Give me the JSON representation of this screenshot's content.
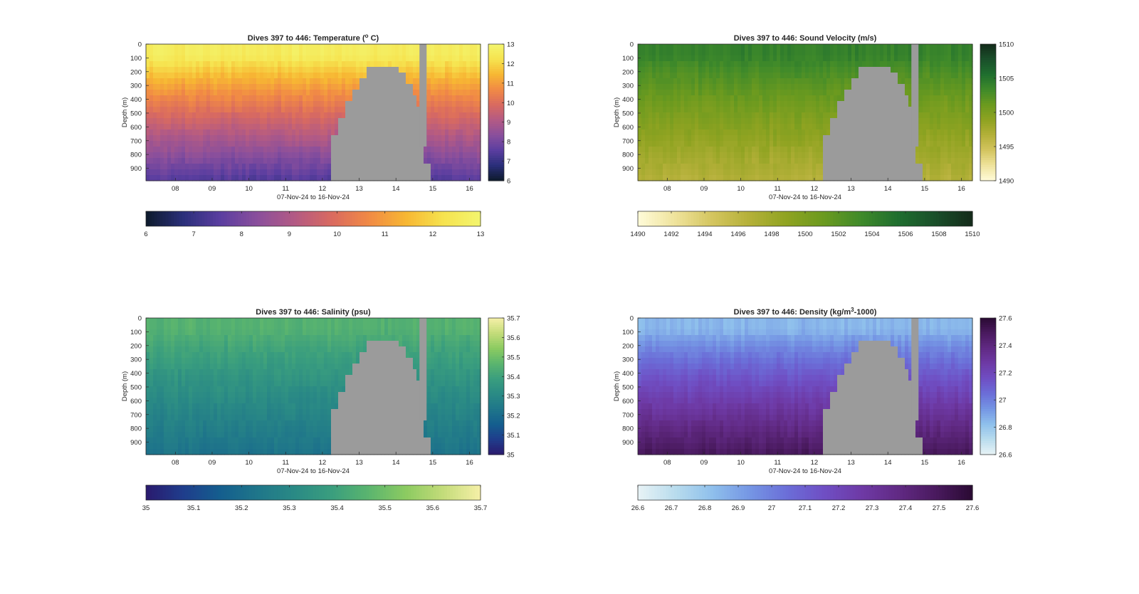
{
  "figure": {
    "depth_label": "Depth (m)",
    "date_label": "07-Nov-24 to 16-Nov-24",
    "x_ticks": [
      "08",
      "09",
      "10",
      "11",
      "12",
      "13",
      "14",
      "15",
      "16"
    ],
    "y_ticks": [
      "0",
      "100",
      "200",
      "300",
      "400",
      "500",
      "600",
      "700",
      "800",
      "900"
    ],
    "nodata_color": "#9b9b9b"
  },
  "chart_data": [
    {
      "type": "heatmap",
      "title": "Dives 397 to 446: Temperature (°C)",
      "xlabel": "07-Nov-24 to 16-Nov-24",
      "ylabel": "Depth (m)",
      "xlim": [
        7.2,
        16.3
      ],
      "ylim": [
        0,
        990
      ],
      "colorbar": {
        "min": 6,
        "max": 13,
        "ticks": [
          "6",
          "7",
          "8",
          "9",
          "10",
          "11",
          "12",
          "13"
        ],
        "h_ticks": [
          "6",
          "7",
          "8",
          "9",
          "10",
          "11",
          "12",
          "13"
        ]
      },
      "colormap": [
        "#0d1a2b",
        "#2a2f7a",
        "#5b3ea0",
        "#8a4f9c",
        "#b35a84",
        "#d96a60",
        "#f18a45",
        "#f7b733",
        "#f6e34f",
        "#f3f56e"
      ],
      "surface_value": 12.6,
      "deep_value": 7.4
    },
    {
      "type": "heatmap",
      "title": "Dives 397 to 446: Sound Velocity (m/s)",
      "xlabel": "07-Nov-24 to 16-Nov-24",
      "ylabel": "Depth (m)",
      "xlim": [
        7.2,
        16.3
      ],
      "ylim": [
        0,
        990
      ],
      "colorbar": {
        "min": 1490,
        "max": 1510,
        "ticks": [
          "1490",
          "1495",
          "1500",
          "1505",
          "1510"
        ],
        "h_ticks": [
          "1490",
          "1492",
          "1494",
          "1496",
          "1498",
          "1500",
          "1502",
          "1504",
          "1506",
          "1508",
          "1510"
        ]
      },
      "colormap": [
        "#fffbd9",
        "#efe39c",
        "#d4c55f",
        "#b4b039",
        "#8fa321",
        "#6b9a1f",
        "#3f8a2a",
        "#1f6e2f",
        "#1a4f2a",
        "#142b1a"
      ],
      "surface_value": 1504,
      "deep_value": 1496.5
    },
    {
      "type": "heatmap",
      "title": "Dives 397 to 446: Salinity (psu)",
      "xlabel": "07-Nov-24 to 16-Nov-24",
      "ylabel": "Depth (m)",
      "xlim": [
        7.2,
        16.3
      ],
      "ylim": [
        0,
        990
      ],
      "colorbar": {
        "min": 35,
        "max": 35.7,
        "ticks": [
          "35",
          "35.1",
          "35.2",
          "35.3",
          "35.4",
          "35.5",
          "35.6",
          "35.7"
        ],
        "h_ticks": [
          "35",
          "35.1",
          "35.2",
          "35.3",
          "35.4",
          "35.5",
          "35.6",
          "35.7"
        ]
      },
      "colormap": [
        "#2a1a6e",
        "#1f3d8c",
        "#145e8e",
        "#1f768a",
        "#2a8a85",
        "#3a9e7e",
        "#5bb56e",
        "#8ccb61",
        "#c4dc7a",
        "#f6f0a8"
      ],
      "surface_value": 35.45,
      "deep_value": 35.22
    },
    {
      "type": "heatmap",
      "title": "Dives 397 to 446: Density (kg/m³-1000)",
      "xlabel": "07-Nov-24 to 16-Nov-24",
      "ylabel": "Depth (m)",
      "xlim": [
        7.2,
        16.3
      ],
      "ylim": [
        0,
        990
      ],
      "colorbar": {
        "min": 26.6,
        "max": 27.6,
        "ticks": [
          "26.6",
          "26.8",
          "27",
          "27.2",
          "27.4",
          "27.6"
        ],
        "h_ticks": [
          "26.6",
          "26.7",
          "26.8",
          "26.9",
          "27",
          "27.1",
          "27.2",
          "27.3",
          "27.4",
          "27.5",
          "27.6"
        ]
      },
      "colormap": [
        "#e8f3f6",
        "#b9dced",
        "#8fc0ec",
        "#7596e4",
        "#6b6ed8",
        "#6f4fc4",
        "#6e3aa6",
        "#612a84",
        "#4a1a5f",
        "#2a0a33"
      ],
      "surface_value": 26.85,
      "deep_value": 27.5
    }
  ]
}
